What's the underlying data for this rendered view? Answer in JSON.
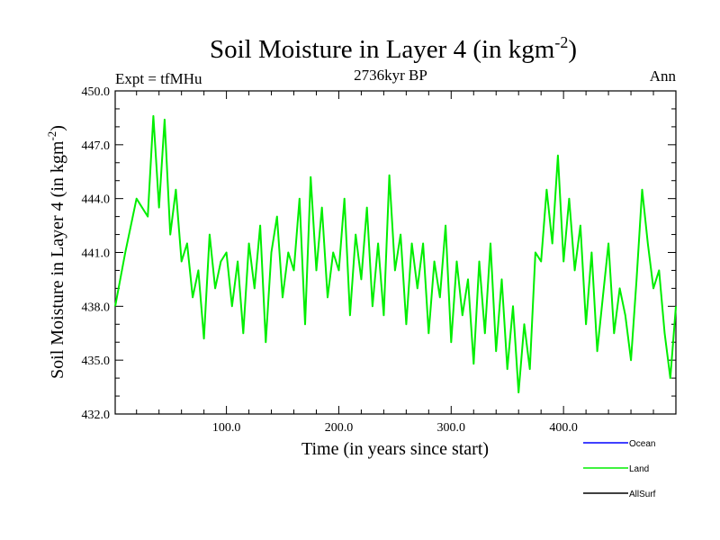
{
  "chart_data": {
    "type": "line",
    "title_main": "Soil Moisture in Layer 4 (in kgm",
    "title_sup": "-2",
    "title_close": ")",
    "subtitle": "2736kyr BP",
    "left_label": "Expt = tfMHu",
    "right_label": "Ann",
    "xlabel": "Time (in years since start)",
    "ylabel_main": "Soil Moisture in Layer 4 (in kgm",
    "ylabel_sup": "-2",
    "ylabel_close": ")",
    "xlim": [
      1,
      500
    ],
    "ylim": [
      432,
      450
    ],
    "xticks": [
      100,
      200,
      300,
      400
    ],
    "xtick_labels": [
      "100.0",
      "200.0",
      "300.0",
      "400.0"
    ],
    "yticks": [
      432,
      435,
      438,
      441,
      444,
      447,
      450
    ],
    "ytick_labels": [
      "432.0",
      "435.0",
      "438.0",
      "441.0",
      "444.0",
      "447.0",
      "450.0"
    ],
    "series": [
      {
        "name": "Ocean",
        "color": "#0000ff",
        "values": []
      },
      {
        "name": "Land",
        "color": "#00ee00",
        "x": [
          1,
          10,
          20,
          30,
          35,
          40,
          45,
          50,
          55,
          60,
          65,
          70,
          75,
          80,
          85,
          90,
          95,
          100,
          105,
          110,
          115,
          120,
          125,
          130,
          135,
          140,
          145,
          150,
          155,
          160,
          165,
          170,
          175,
          180,
          185,
          190,
          195,
          200,
          205,
          210,
          215,
          220,
          225,
          230,
          235,
          240,
          245,
          250,
          255,
          260,
          265,
          270,
          275,
          280,
          285,
          290,
          295,
          300,
          305,
          310,
          315,
          320,
          325,
          330,
          335,
          340,
          345,
          350,
          355,
          360,
          365,
          370,
          375,
          380,
          385,
          390,
          395,
          400,
          405,
          410,
          415,
          420,
          425,
          430,
          435,
          440,
          445,
          450,
          455,
          460,
          465,
          470,
          475,
          480,
          485,
          490,
          495,
          500
        ],
        "values": [
          438.0,
          441.0,
          444.0,
          443.0,
          448.6,
          443.5,
          448.4,
          442.0,
          444.5,
          440.5,
          441.5,
          438.5,
          440.0,
          436.2,
          442.0,
          439.0,
          440.5,
          441.0,
          438.0,
          440.5,
          436.5,
          441.5,
          439.0,
          442.5,
          436.0,
          441.0,
          443.0,
          438.5,
          441.0,
          440.0,
          444.0,
          437.0,
          445.2,
          440.0,
          443.5,
          438.5,
          441.0,
          440.0,
          444.0,
          437.5,
          442.0,
          439.5,
          443.5,
          438.0,
          441.5,
          437.5,
          445.3,
          440.0,
          442.0,
          437.0,
          441.5,
          439.0,
          441.5,
          436.5,
          440.5,
          438.5,
          442.5,
          436.0,
          440.5,
          437.5,
          439.5,
          434.8,
          440.5,
          436.5,
          441.5,
          435.5,
          439.5,
          434.5,
          438.0,
          433.2,
          437.0,
          434.5,
          441.0,
          440.5,
          444.5,
          441.5,
          446.4,
          440.5,
          444.0,
          440.0,
          442.5,
          437.0,
          441.0,
          435.5,
          438.5,
          441.5,
          436.5,
          439.0,
          437.5,
          435.0,
          439.5,
          444.5,
          441.5,
          439.0,
          440.0,
          436.5,
          434.0,
          438.0
        ]
      },
      {
        "name": "AllSurf",
        "color": "#000000",
        "values": []
      }
    ],
    "legend_position": "bottom-right"
  }
}
